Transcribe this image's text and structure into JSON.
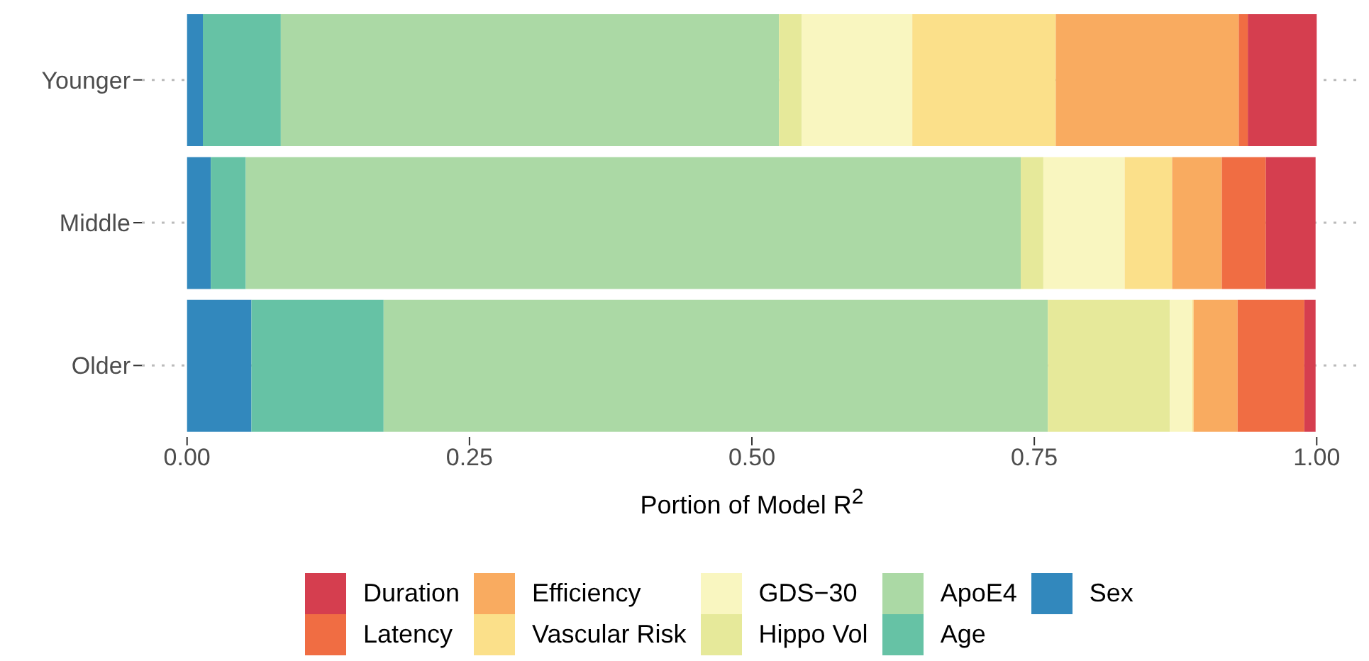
{
  "chart_data": {
    "type": "bar",
    "orientation": "horizontal",
    "stacked": true,
    "xlabel": "Portion of Model R$^{2}$",
    "categories": [
      "Younger",
      "Middle",
      "Older"
    ],
    "series": [
      {
        "name": "Sex",
        "color": "#3288bd",
        "values": [
          0.014,
          0.021,
          0.057
        ]
      },
      {
        "name": "Age",
        "color": "#66c2a5",
        "values": [
          0.069,
          0.031,
          0.117
        ]
      },
      {
        "name": "ApoE4",
        "color": "#abd9a5",
        "values": [
          0.441,
          0.686,
          0.588
        ]
      },
      {
        "name": "Hippo Vol",
        "color": "#e6e99a",
        "values": [
          0.02,
          0.02,
          0.108
        ]
      },
      {
        "name": "GDS−30",
        "color": "#f9f6c0",
        "values": [
          0.098,
          0.072,
          0.02
        ]
      },
      {
        "name": "Vascular Risk",
        "color": "#fbe08a",
        "values": [
          0.127,
          0.042,
          0.001
        ]
      },
      {
        "name": "Efficiency",
        "color": "#f9ab60",
        "values": [
          0.162,
          0.044,
          0.039
        ]
      },
      {
        "name": "Latency",
        "color": "#f06d43",
        "values": [
          0.008,
          0.039,
          0.059
        ]
      },
      {
        "name": "Duration",
        "color": "#d53e4f",
        "values": [
          0.061,
          0.044,
          0.01
        ]
      }
    ],
    "xlim": [
      -0.04,
      1.04
    ],
    "xticks": [
      {
        "value": 0,
        "label": "0.00"
      },
      {
        "value": 0.25,
        "label": "0.25"
      },
      {
        "value": 0.5,
        "label": "0.50"
      },
      {
        "value": 0.75,
        "label": "0.75"
      },
      {
        "value": 1,
        "label": "1.00"
      }
    ],
    "grid": "y",
    "legend": "bottom"
  }
}
